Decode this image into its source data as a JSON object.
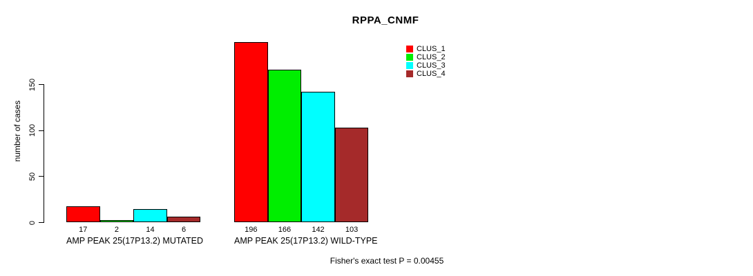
{
  "title": "RPPA_CNMF",
  "y_axis": {
    "label": "number of cases",
    "tick_labels": [
      "0",
      "50",
      "100",
      "150"
    ]
  },
  "footer": "Fisher's exact test P = 0.00455",
  "chart_data": {
    "type": "bar",
    "title": "RPPA_CNMF",
    "xlabel": "",
    "ylabel": "number of cases",
    "categories": [
      "AMP PEAK 25(17P13.2) MUTATED",
      "AMP PEAK 25(17P13.2) WILD-TYPE"
    ],
    "series": [
      {
        "name": "CLUS_1",
        "color": "#ff0000",
        "values": [
          17,
          196
        ]
      },
      {
        "name": "CLUS_2",
        "color": "#00ee00",
        "values": [
          2,
          166
        ]
      },
      {
        "name": "CLUS_3",
        "color": "#00ffff",
        "values": [
          14,
          142
        ]
      },
      {
        "name": "CLUS_4",
        "color": "#a52a2a",
        "values": [
          6,
          103
        ]
      }
    ],
    "yticks": [
      0,
      50,
      100,
      150
    ],
    "ylim": [
      0,
      200
    ],
    "grid": false,
    "legend_position": "top-right",
    "bar_value_labels_shown": true,
    "annotation": "Fisher's exact test P = 0.00455"
  }
}
